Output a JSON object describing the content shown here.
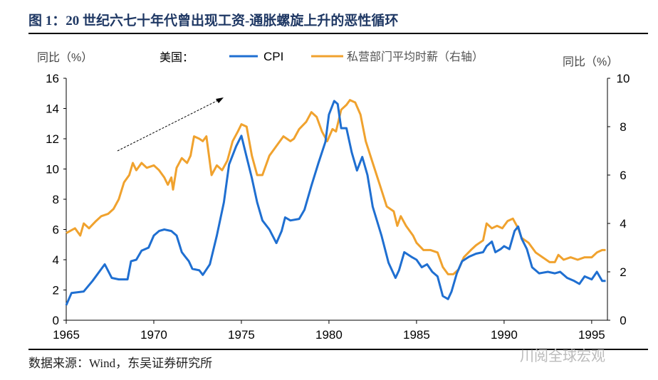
{
  "title": "图 1：20 世纪六七十年代曾出现工资-通胀螺旋上升的恶性循环",
  "source": "数据来源：Wind，东吴证券研究所",
  "watermark": "川阅全球宏观",
  "chart_data": {
    "type": "line",
    "legend_prefix": "美国：",
    "legend_placement": "top",
    "ylabel_left": "同比（%）",
    "ylabel_right": "同比（%）",
    "xlim": [
      1965,
      1995.9
    ],
    "ylim_left": [
      0,
      16
    ],
    "ylim_right": [
      0,
      10
    ],
    "xticks": [
      1965,
      1970,
      1975,
      1980,
      1985,
      1990,
      1995
    ],
    "yticks_left": [
      0,
      2,
      4,
      6,
      8,
      10,
      12,
      14,
      16
    ],
    "yticks_right": [
      0,
      2,
      4,
      6,
      8,
      10
    ],
    "grid": false,
    "series": [
      {
        "name": "CPI",
        "axis": "left",
        "color": "#1f6fd1",
        "x": [
          1965,
          1965.3,
          1966,
          1966.5,
          1967.2,
          1967.6,
          1968,
          1968.5,
          1968.7,
          1969,
          1969.3,
          1969.7,
          1970,
          1970.3,
          1970.6,
          1971,
          1971.3,
          1971.6,
          1971.8,
          1972,
          1972.2,
          1972.6,
          1972.8,
          1973.2,
          1973.6,
          1974,
          1974.3,
          1974.7,
          1975,
          1975.3,
          1975.6,
          1975.9,
          1976.2,
          1976.6,
          1977,
          1977.3,
          1977.5,
          1977.8,
          1978.3,
          1978.6,
          1979,
          1979.4,
          1979.8,
          1980,
          1980.3,
          1980.5,
          1980.7,
          1981,
          1981.3,
          1981.6,
          1981.9,
          1982.2,
          1982.5,
          1983,
          1983.4,
          1983.8,
          1984,
          1984.3,
          1984.7,
          1985,
          1985.3,
          1985.6,
          1985.9,
          1986.2,
          1986.5,
          1986.8,
          1987,
          1987.3,
          1987.6,
          1988,
          1988.4,
          1988.8,
          1989,
          1989.3,
          1989.5,
          1989.8,
          1990,
          1990.3,
          1990.6,
          1990.8,
          1991,
          1991.3,
          1991.6,
          1992,
          1992.5,
          1992.9,
          1993.2,
          1993.6,
          1994,
          1994.3,
          1994.6,
          1995,
          1995.3,
          1995.6,
          1995.8
        ],
        "y": [
          1.0,
          1.8,
          1.9,
          2.6,
          3.7,
          2.8,
          2.7,
          2.7,
          3.9,
          4.0,
          4.6,
          4.8,
          5.6,
          5.9,
          6.0,
          5.9,
          5.6,
          4.5,
          4.2,
          3.9,
          3.4,
          3.3,
          3.0,
          3.7,
          5.6,
          7.8,
          10.3,
          11.5,
          12.2,
          10.8,
          9.4,
          7.8,
          6.6,
          6.0,
          5.1,
          5.9,
          6.8,
          6.6,
          6.7,
          7.3,
          8.9,
          10.4,
          11.8,
          13.6,
          14.5,
          14.3,
          12.7,
          12.7,
          11.1,
          9.9,
          10.8,
          9.6,
          7.5,
          5.6,
          3.8,
          2.8,
          3.3,
          4.5,
          4.2,
          4.0,
          3.5,
          3.7,
          3.2,
          2.9,
          1.6,
          1.4,
          1.9,
          3.1,
          3.9,
          4.2,
          4.4,
          4.5,
          4.9,
          5.2,
          4.5,
          4.7,
          4.9,
          4.7,
          5.9,
          6.2,
          5.4,
          4.7,
          3.5,
          3.1,
          3.2,
          3.1,
          3.2,
          2.8,
          2.6,
          2.4,
          2.9,
          2.7,
          3.2,
          2.6,
          2.6
        ]
      },
      {
        "name": "私营部门平均时薪（右轴）",
        "axis": "right",
        "color": "#f0a22e",
        "x": [
          1965,
          1965.5,
          1965.8,
          1966,
          1966.3,
          1966.7,
          1967,
          1967.4,
          1967.7,
          1968,
          1968.3,
          1968.6,
          1968.8,
          1969,
          1969.3,
          1969.6,
          1970,
          1970.3,
          1970.6,
          1970.8,
          1971,
          1971.1,
          1971.3,
          1971.6,
          1971.9,
          1972.1,
          1972.3,
          1972.6,
          1972.8,
          1973,
          1973.3,
          1973.6,
          1973.9,
          1974.2,
          1974.5,
          1974.8,
          1975,
          1975.3,
          1975.6,
          1975.9,
          1976.2,
          1976.6,
          1977,
          1977.4,
          1977.8,
          1978,
          1978.3,
          1978.7,
          1979,
          1979.3,
          1979.6,
          1979.9,
          1980.2,
          1980.4,
          1980.7,
          1981,
          1981.2,
          1981.5,
          1981.8,
          1982.1,
          1982.5,
          1982.9,
          1983.3,
          1983.7,
          1983.9,
          1984.1,
          1984.4,
          1984.8,
          1985,
          1985.4,
          1985.8,
          1986.2,
          1986.5,
          1986.8,
          1987.1,
          1987.4,
          1987.7,
          1988.1,
          1988.4,
          1988.8,
          1989,
          1989.3,
          1989.6,
          1989.9,
          1990.2,
          1990.5,
          1990.8,
          1991,
          1991.4,
          1991.8,
          1992.2,
          1992.6,
          1992.9,
          1993.1,
          1993.4,
          1993.8,
          1994.2,
          1994.6,
          1995,
          1995.3,
          1995.6,
          1995.8
        ],
        "y": [
          3.6,
          3.8,
          3.5,
          4.0,
          3.8,
          4.1,
          4.3,
          4.4,
          4.6,
          5.0,
          5.7,
          6.0,
          6.5,
          6.2,
          6.5,
          6.3,
          6.4,
          6.2,
          5.9,
          5.6,
          5.9,
          5.4,
          6.3,
          6.7,
          6.5,
          6.8,
          7.6,
          7.5,
          7.4,
          7.6,
          6.0,
          6.4,
          6.2,
          6.6,
          7.4,
          7.8,
          8.1,
          8.0,
          6.8,
          6.0,
          6.0,
          6.8,
          7.2,
          7.6,
          7.4,
          7.5,
          7.9,
          8.2,
          8.6,
          8.4,
          7.8,
          7.4,
          7.9,
          7.8,
          8.7,
          8.9,
          9.1,
          9.0,
          8.5,
          7.4,
          6.5,
          5.6,
          4.7,
          4.5,
          3.9,
          4.3,
          3.9,
          3.5,
          3.2,
          2.9,
          2.9,
          2.8,
          2.2,
          1.9,
          1.9,
          2.1,
          2.6,
          2.9,
          3.1,
          3.3,
          4.0,
          3.8,
          3.9,
          3.8,
          4.1,
          4.2,
          3.8,
          3.4,
          3.2,
          2.8,
          2.6,
          2.4,
          2.4,
          2.7,
          2.5,
          2.6,
          2.5,
          2.6,
          2.6,
          2.8,
          2.9,
          2.9
        ]
      }
    ]
  }
}
